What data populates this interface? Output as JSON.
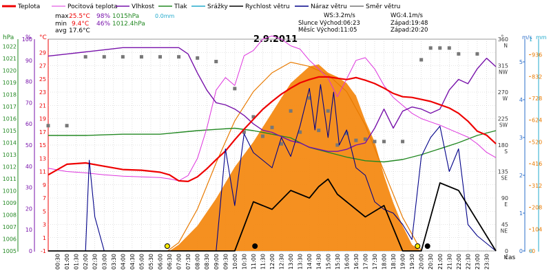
{
  "chart_data": {
    "type": "line",
    "title": "2.9.2011",
    "x_tick_labels": [
      "00:30",
      "01:00",
      "01:30",
      "02:00",
      "02:30",
      "03:00",
      "03:30",
      "04:00",
      "04:30",
      "05:00",
      "05:30",
      "06:00",
      "06:30",
      "07:00",
      "07:30",
      "08:00",
      "08:30",
      "09:00",
      "09:30",
      "10:00",
      "10:30",
      "11:00",
      "11:30",
      "12:00",
      "12:30",
      "13:00",
      "13:30",
      "14:00",
      "14:30",
      "15:00",
      "15:30",
      "16:00",
      "16:30",
      "17:00",
      "17:30",
      "18:00",
      "18:30",
      "19:00",
      "19:30",
      "20:00",
      "20:30",
      "21:00",
      "21:30",
      "22:00",
      "22:30",
      "23:00",
      "23:30"
    ],
    "xlabel": "čas",
    "legend": [
      {
        "name": "Teplota",
        "color": "#ee0000"
      },
      {
        "name": "Pocitová teplota",
        "color": "#dd33dd"
      },
      {
        "name": "Vlhkost",
        "color": "#7711aa"
      },
      {
        "name": "Tlak",
        "color": "#228822"
      },
      {
        "name": "Srážky",
        "color": "#22aacc"
      },
      {
        "name": "Rychlost větru",
        "color": "#000000"
      },
      {
        "name": "Náraz větru",
        "color": "#000088"
      },
      {
        "name": "Směr větru",
        "color": "#777777"
      }
    ],
    "stats": {
      "max": {
        "label": "max",
        "temp": "25.5°C",
        "hum": "98%",
        "press": "1015hPa",
        "rain": "0.0mm"
      },
      "min": {
        "label": "min",
        "temp": "9.4°C",
        "hum": "46%",
        "press": "1012.4hPa"
      },
      "avg": {
        "label": "avg",
        "temp": "17.6°C"
      }
    },
    "info": {
      "ws": "WS:3.2m/s",
      "wg": "WG:4.1m/s",
      "sun_rise": "Slunce Východ:06:23",
      "sun_set": "Západ:19:48",
      "moon_rise": "Měsíc Východ:11:05",
      "moon_set": "Západ:20:20"
    },
    "axes": {
      "hpa": {
        "label": "hPa",
        "ticks": [
          "1005",
          "1006",
          "1007",
          "1008",
          "1009",
          "1010",
          "1011",
          "1012",
          "1013",
          "1014",
          "1015",
          "1016",
          "1017",
          "1018",
          "1019",
          "1020",
          "1021",
          "1022"
        ],
        "range": [
          1005,
          1022.6
        ]
      },
      "pct": {
        "label": "%",
        "ticks": [
          "0",
          "10",
          "20",
          "30",
          "40",
          "50",
          "60",
          "70",
          "80",
          "90",
          "100"
        ],
        "range": [
          0,
          100
        ]
      },
      "celsius": {
        "label": "°C",
        "ticks": [
          "-1",
          "1",
          "3",
          "5",
          "7",
          "9",
          "11",
          "13",
          "15",
          "17",
          "19",
          "21",
          "23",
          "25",
          "27",
          "29"
        ],
        "range": [
          -1,
          31
        ]
      },
      "dir": {
        "label": "°",
        "ticks": [
          {
            "deg": 0,
            "label": "0",
            "sub": "N"
          },
          {
            "deg": 45,
            "label": "45",
            "sub": "NE"
          },
          {
            "deg": 90,
            "label": "90",
            "sub": "E"
          },
          {
            "deg": 135,
            "label": "135",
            "sub": "SE"
          },
          {
            "deg": 180,
            "label": "180",
            "sub": "S"
          },
          {
            "deg": 225,
            "label": "225",
            "sub": "SW"
          },
          {
            "deg": 270,
            "label": "270",
            "sub": "W"
          },
          {
            "deg": 315,
            "label": "315",
            "sub": "NW"
          },
          {
            "deg": 360,
            "label": "360",
            "sub": "N"
          }
        ],
        "range": [
          0,
          360
        ]
      },
      "ms": {
        "label": "m/s",
        "ticks": [
          "0",
          "1",
          "2",
          "3",
          "4",
          "5"
        ],
        "range": [
          0,
          5.6
        ]
      },
      "mm": {
        "label": "mm",
        "ticks": [
          "0",
          "1"
        ],
        "range": [
          0,
          1
        ]
      },
      "wm2": {
        "ticks": [
          "0",
          "104",
          "208",
          "312",
          "416",
          "520",
          "624",
          "728",
          "832",
          "936"
        ],
        "range": [
          0,
          1010
        ]
      }
    },
    "series": {
      "temperature": {
        "x": [
          0,
          1,
          2,
          3,
          4,
          5,
          6,
          6.5,
          7,
          7.5,
          8,
          8.5,
          9,
          9.5,
          10,
          10.5,
          11,
          11.5,
          12,
          12.5,
          13,
          13.5,
          14,
          14.5,
          15,
          15.5,
          16,
          16.5,
          17,
          17.5,
          18,
          18.5,
          19,
          19.5,
          20,
          20.5,
          21,
          21.5,
          22,
          22.5,
          23,
          23.5,
          24
        ],
        "y": [
          10.5,
          12.1,
          12.3,
          11.8,
          11.3,
          11.2,
          10.9,
          10.5,
          9.6,
          9.5,
          10.2,
          11.4,
          12.8,
          14.1,
          15.8,
          17.4,
          18.9,
          20.4,
          21.6,
          22.7,
          23.6,
          24.4,
          24.9,
          25.3,
          25.3,
          25.1,
          24.9,
          25.2,
          24.8,
          24.3,
          23.6,
          22.8,
          22.3,
          22.2,
          21.9,
          21.6,
          21.1,
          20.6,
          19.8,
          18.6,
          17.1,
          16.5,
          15.2
        ]
      },
      "feels_like": {
        "x": [
          0,
          1,
          2,
          3,
          4,
          5,
          6,
          6.5,
          7,
          7.5,
          8,
          8.5,
          9,
          9.5,
          10,
          10.5,
          11,
          11.5,
          12,
          12.5,
          13,
          13.5,
          14,
          14.5,
          15,
          15.5,
          16,
          16.5,
          17,
          17.5,
          18,
          18.5,
          19,
          19.5,
          20,
          20.5,
          21,
          21.5,
          22,
          22.5,
          23,
          23.5,
          24
        ],
        "y": [
          11.5,
          11.0,
          10.8,
          10.5,
          10.3,
          10.2,
          10.1,
          9.9,
          9.6,
          10.4,
          13.0,
          17.5,
          23.3,
          25.2,
          24.0,
          28.5,
          29.3,
          31.0,
          31.5,
          31.0,
          30.0,
          29.5,
          27.8,
          26.5,
          25.1,
          22.3,
          25.0,
          27.8,
          28.2,
          26.5,
          24.0,
          22.2,
          21.0,
          19.8,
          19.0,
          18.5,
          18.0,
          17.4,
          16.8,
          16.2,
          15.2,
          13.9,
          13.1
        ]
      },
      "humidity": {
        "x": [
          0,
          1,
          2,
          3,
          4,
          5,
          6,
          7,
          7.5,
          8,
          8.5,
          9,
          9.5,
          10,
          10.5,
          11,
          11.5,
          12,
          12.5,
          13,
          13.5,
          14,
          14.5,
          15,
          15.5,
          16,
          16.5,
          17,
          17.5,
          18,
          18.5,
          19,
          19.5,
          20,
          20.5,
          21,
          21.5,
          22,
          22.5,
          23,
          23.5,
          24
        ],
        "y": [
          92,
          93,
          94,
          95,
          96,
          96,
          96,
          96,
          93,
          84,
          76,
          70,
          69,
          67,
          64,
          60,
          57,
          56,
          54,
          52,
          51,
          49,
          48,
          47,
          47,
          48,
          50,
          51,
          58,
          67,
          58,
          66,
          68,
          67,
          65,
          67,
          76,
          81,
          79,
          86,
          91,
          87
        ]
      },
      "pressure": {
        "x": [
          0,
          2,
          4,
          6,
          8,
          9,
          10,
          11,
          12,
          13,
          14,
          15,
          16,
          17,
          18,
          19,
          20,
          21,
          22,
          23,
          24
        ],
        "y": [
          1014.6,
          1014.6,
          1014.7,
          1014.7,
          1015.0,
          1015.1,
          1015.2,
          1015.0,
          1014.7,
          1014.4,
          1013.6,
          1013.2,
          1012.8,
          1012.5,
          1012.4,
          1012.6,
          1013.0,
          1013.5,
          1014.0,
          1014.6,
          1015.0
        ]
      },
      "wind_speed": {
        "x": [
          0,
          10,
          11,
          12,
          13,
          14,
          14.5,
          15,
          15.5,
          16,
          17,
          18,
          19,
          20,
          21,
          22,
          24
        ],
        "y": [
          0,
          0,
          1.3,
          1.1,
          1.6,
          1.4,
          1.7,
          1.9,
          1.5,
          1.3,
          0.9,
          1.2,
          0,
          0,
          1.8,
          1.6,
          0
        ]
      },
      "wind_gust": {
        "x": [
          0,
          2,
          2.2,
          2.5,
          3,
          9,
          9.5,
          10,
          10.5,
          11,
          11.5,
          12,
          12.5,
          13,
          13.5,
          14,
          14.3,
          14.6,
          15,
          15.3,
          15.6,
          16,
          16.5,
          17,
          17.5,
          18,
          18.5,
          19,
          19.5,
          20,
          20.5,
          21,
          21.5,
          22,
          22.5,
          23,
          24
        ],
        "y": [
          0,
          0,
          2.4,
          0.9,
          0,
          0,
          2.7,
          1.2,
          3.1,
          2.6,
          2.4,
          2.2,
          3.0,
          2.5,
          3.3,
          4.3,
          3.2,
          4.4,
          3.0,
          4.2,
          2.8,
          3.2,
          2.2,
          2.0,
          1.3,
          1.1,
          1.0,
          0.7,
          0.3,
          2.5,
          3.0,
          3.3,
          2.1,
          2.7,
          0.7,
          0.4,
          0
        ]
      },
      "solar_radiation_wm2": {
        "x": [
          6.5,
          7,
          8,
          9,
          10,
          11,
          12,
          13,
          14,
          14.5,
          15,
          15.5,
          16,
          16.5,
          17,
          17.5,
          18,
          18.5,
          19,
          19.5,
          20
        ],
        "y": [
          0,
          30,
          120,
          250,
          400,
          520,
          660,
          800,
          880,
          890,
          850,
          830,
          800,
          740,
          620,
          520,
          360,
          230,
          120,
          30,
          0
        ]
      },
      "theoretical_radiation_wm2": {
        "x": [
          6.4,
          7,
          8,
          9,
          10,
          11,
          12,
          13,
          14,
          14.5,
          15,
          16,
          17,
          18,
          19,
          20
        ],
        "y": [
          0,
          40,
          200,
          420,
          620,
          760,
          850,
          900,
          880,
          860,
          840,
          760,
          600,
          380,
          160,
          0
        ]
      },
      "wind_direction_deg": {
        "x": [
          0,
          1,
          2,
          3,
          4,
          5,
          6,
          7,
          8,
          9,
          10,
          10.5,
          11,
          11.5,
          12,
          12.5,
          13,
          13.5,
          14,
          14.5,
          15,
          15.5,
          16,
          16.5,
          17,
          17.5,
          18,
          19,
          20,
          20.5,
          21,
          21.5,
          22,
          23
        ],
        "y": [
          213,
          213,
          330,
          330,
          330,
          330,
          330,
          330,
          328,
          322,
          276,
          202,
          228,
          195,
          210,
          182,
          238,
          202,
          260,
          205,
          238,
          180,
          200,
          188,
          190,
          186,
          186,
          186,
          325,
          345,
          345,
          345,
          335,
          335
        ]
      }
    },
    "markers": {
      "sun": [
        "06:23",
        "19:48"
      ],
      "moon": [
        "11:05",
        "20:20"
      ]
    }
  }
}
